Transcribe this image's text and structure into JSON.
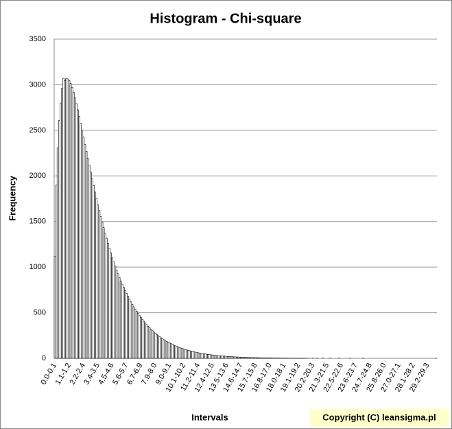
{
  "chart_data": {
    "type": "bar",
    "title": "Histogram - Chi-square",
    "x_label": "Intervals",
    "y_label": "Frequency",
    "annotation": "Copyright (C) leansigma.pl",
    "color": "#ffffff",
    "edge_color": "#000000",
    "grid": true,
    "ylim": [
      0,
      3500
    ],
    "yticks": [
      0,
      500,
      1000,
      1500,
      2000,
      2500,
      3000,
      3500
    ],
    "categories": [
      "0.0-0.1",
      null,
      null,
      null,
      null,
      null,
      null,
      null,
      null,
      null,
      "1.1-1.2",
      null,
      null,
      null,
      null,
      null,
      null,
      null,
      null,
      null,
      "2.2-2.4",
      null,
      null,
      null,
      null,
      null,
      null,
      null,
      null,
      null,
      "3.4-3.5",
      null,
      null,
      null,
      null,
      null,
      null,
      null,
      null,
      null,
      "4.5-4.6",
      null,
      null,
      null,
      null,
      null,
      null,
      null,
      null,
      null,
      "5.6-5.7",
      null,
      null,
      null,
      null,
      null,
      null,
      null,
      null,
      null,
      "6.7-6.9",
      null,
      null,
      null,
      null,
      null,
      null,
      null,
      null,
      null,
      "7.9-8.0",
      null,
      null,
      null,
      null,
      null,
      null,
      null,
      null,
      null,
      "9.0-9.1",
      null,
      null,
      null,
      null,
      null,
      null,
      null,
      null,
      null,
      "10.1-10.2",
      null,
      null,
      null,
      null,
      null,
      null,
      null,
      null,
      null,
      "11.2-11.4",
      null,
      null,
      null,
      null,
      null,
      null,
      null,
      null,
      null,
      "12.4-12.5",
      null,
      null,
      null,
      null,
      null,
      null,
      null,
      null,
      null,
      "13.5-13.6",
      null,
      null,
      null,
      null,
      null,
      null,
      null,
      null,
      null,
      "14.6-14.7",
      null,
      null,
      null,
      null,
      null,
      null,
      null,
      null,
      null,
      "15.7-15.8",
      null,
      null,
      null,
      null,
      null,
      null,
      null,
      null,
      null,
      "16.8-17.0",
      null,
      null,
      null,
      null,
      null,
      null,
      null,
      null,
      null,
      "18.0-18.1",
      null,
      null,
      null,
      null,
      null,
      null,
      null,
      null,
      null,
      "19.1-19.2",
      null,
      null,
      null,
      null,
      null,
      null,
      null,
      null,
      null,
      "20.2-20.3",
      null,
      null,
      null,
      null,
      null,
      null,
      null,
      null,
      null,
      "21.3-21.5",
      null,
      null,
      null,
      null,
      null,
      null,
      null,
      null,
      null,
      "22.5-22.6",
      null,
      null,
      null,
      null,
      null,
      null,
      null,
      null,
      null,
      "23.6-23.7",
      null,
      null,
      null,
      null,
      null,
      null,
      null,
      null,
      null,
      "24.7-24.8",
      null,
      null,
      null,
      null,
      null,
      null,
      null,
      null,
      null,
      "25.8-26.0",
      null,
      null,
      null,
      null,
      null,
      null,
      null,
      null,
      null,
      "27.0-27.1",
      null,
      null,
      null,
      null,
      null,
      null,
      null,
      null,
      null,
      "28.1-28.2",
      null,
      null,
      null,
      null,
      null,
      null,
      null,
      null,
      null,
      "29.2-29.3",
      null,
      null,
      null,
      null,
      null,
      null
    ],
    "values": [
      1120,
      1900,
      2310,
      2607,
      2794,
      2960,
      3070,
      3047,
      3066,
      3064,
      3045,
      3013,
      2969,
      2917,
      2858,
      2793,
      2724,
      2652,
      2577,
      2501,
      2425,
      2347,
      2270,
      2193,
      2117,
      2041,
      1967,
      1895,
      1823,
      1753,
      1685,
      1620,
      1555,
      1493,
      1432,
      1373,
      1316,
      1261,
      1208,
      1157,
      1107,
      1059,
      1013,
      969,
      927,
      887,
      849,
      812,
      777,
      743,
      711,
      679,
      648,
      619,
      591,
      565,
      539,
      515,
      492,
      470,
      449,
      427,
      407,
      387,
      369,
      351,
      334,
      318,
      303,
      288,
      274,
      261,
      249,
      237,
      225,
      214,
      204,
      194,
      185,
      176,
      168,
      160,
      152,
      144,
      137,
      130,
      124,
      118,
      112,
      106,
      101,
      96,
      91,
      87,
      83,
      79,
      75,
      71,
      68,
      64,
      61,
      58,
      55,
      52,
      49,
      47,
      44,
      42,
      40,
      38,
      36,
      34,
      32,
      31,
      29,
      28,
      26,
      25,
      24,
      22,
      21,
      20,
      19,
      18,
      17,
      16,
      15,
      15,
      14,
      13,
      12,
      12,
      11,
      10,
      10,
      9,
      9,
      8,
      8,
      7,
      7,
      7,
      6,
      6,
      5,
      5,
      5,
      5,
      4,
      4,
      4,
      4,
      3,
      3,
      3,
      3,
      3,
      2,
      2,
      2,
      2,
      2,
      2,
      2,
      1,
      1,
      1,
      1,
      1,
      1,
      1,
      1,
      1,
      1,
      1,
      1,
      0,
      1,
      0,
      0,
      1,
      0,
      0,
      1,
      0,
      0,
      0,
      1,
      0,
      0,
      0,
      0,
      1,
      0,
      0,
      0,
      0,
      0,
      1,
      0,
      0,
      0,
      0,
      0,
      0,
      0,
      1,
      0,
      0,
      0,
      0,
      0,
      0,
      0,
      0,
      1,
      0,
      0,
      0,
      0,
      0,
      0,
      0,
      0,
      0,
      0,
      0,
      0,
      0,
      0,
      0,
      0,
      0,
      0,
      0,
      0,
      0,
      0,
      0,
      0,
      0,
      0,
      0,
      0,
      0,
      0,
      0,
      0,
      0,
      0,
      0,
      0,
      0,
      0,
      0,
      0,
      0,
      0,
      0,
      0,
      0,
      0,
      0,
      0,
      0,
      0,
      1
    ]
  }
}
